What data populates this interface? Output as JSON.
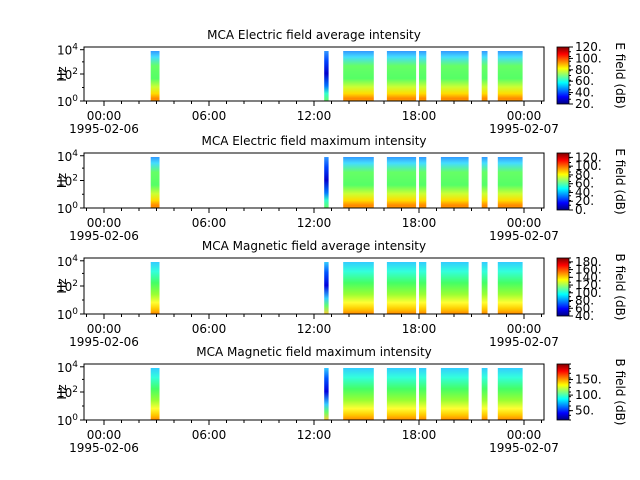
{
  "chart_data": [
    {
      "type": "heatmap",
      "title": "MCA  Electric field average intensity",
      "ylabel": "Hz",
      "yscale": "log",
      "yticks": [
        "10^0",
        "10^2",
        "10^4"
      ],
      "xticks": [
        "00:00",
        "06:00",
        "12:00",
        "18:00",
        "00:00"
      ],
      "xdates": [
        "1995-02-06",
        "1995-02-07"
      ],
      "colorbar": {
        "label": "E field (dB)",
        "ticks": [
          "20.",
          "40.",
          "60.",
          "80.",
          "100.",
          "120."
        ],
        "range": [
          20,
          120
        ]
      },
      "segments": [
        {
          "start": "02:40",
          "end": "03:10",
          "profile": "E"
        },
        {
          "start": "12:35",
          "end": "12:50",
          "profile": "E-dip"
        },
        {
          "start": "13:40",
          "end": "15:25",
          "profile": "E"
        },
        {
          "start": "16:10",
          "end": "17:50",
          "profile": "E"
        },
        {
          "start": "18:00",
          "end": "18:25",
          "profile": "E"
        },
        {
          "start": "19:15",
          "end": "20:50",
          "profile": "E"
        },
        {
          "start": "21:35",
          "end": "21:55",
          "profile": "E"
        },
        {
          "start": "22:30",
          "end": "23:55",
          "profile": "E"
        }
      ]
    },
    {
      "type": "heatmap",
      "title": "MCA  Electric field maximum intensity",
      "ylabel": "Hz",
      "yscale": "log",
      "yticks": [
        "10^0",
        "10^2",
        "10^4"
      ],
      "xticks": [
        "00:00",
        "06:00",
        "12:00",
        "18:00",
        "00:00"
      ],
      "xdates": [
        "1995-02-06",
        "1995-02-07"
      ],
      "colorbar": {
        "label": "E field (dB)",
        "ticks": [
          "0.",
          "20.",
          "40.",
          "60.",
          "80.",
          "100.",
          "120."
        ],
        "range": [
          0,
          130
        ]
      },
      "segments": [
        {
          "start": "02:40",
          "end": "03:10",
          "profile": "E"
        },
        {
          "start": "12:35",
          "end": "12:50",
          "profile": "E-dip"
        },
        {
          "start": "13:40",
          "end": "15:25",
          "profile": "E"
        },
        {
          "start": "16:10",
          "end": "17:50",
          "profile": "E"
        },
        {
          "start": "18:00",
          "end": "18:25",
          "profile": "E"
        },
        {
          "start": "19:15",
          "end": "20:50",
          "profile": "E"
        },
        {
          "start": "21:35",
          "end": "21:55",
          "profile": "E"
        },
        {
          "start": "22:30",
          "end": "23:55",
          "profile": "E"
        }
      ]
    },
    {
      "type": "heatmap",
      "title": "MCA  Magnetic field average intensity",
      "ylabel": "Hz",
      "yscale": "log",
      "yticks": [
        "10^0",
        "10^2",
        "10^4"
      ],
      "xticks": [
        "00:00",
        "06:00",
        "12:00",
        "18:00",
        "00:00"
      ],
      "xdates": [
        "1995-02-06",
        "1995-02-07"
      ],
      "colorbar": {
        "label": "B field (dB)",
        "ticks": [
          "40.",
          "60.",
          "80.",
          "100.",
          "120.",
          "140.",
          "160.",
          "180."
        ],
        "range": [
          40,
          190
        ]
      },
      "segments": [
        {
          "start": "02:40",
          "end": "03:10",
          "profile": "B"
        },
        {
          "start": "12:35",
          "end": "12:50",
          "profile": "B-dip"
        },
        {
          "start": "13:40",
          "end": "15:25",
          "profile": "B"
        },
        {
          "start": "16:10",
          "end": "17:50",
          "profile": "B"
        },
        {
          "start": "18:00",
          "end": "18:25",
          "profile": "B"
        },
        {
          "start": "19:15",
          "end": "20:50",
          "profile": "B"
        },
        {
          "start": "21:35",
          "end": "21:55",
          "profile": "B"
        },
        {
          "start": "22:30",
          "end": "23:55",
          "profile": "B"
        }
      ]
    },
    {
      "type": "heatmap",
      "title": "MCA  Magnetic field maximum intensity",
      "ylabel": "Hz",
      "yscale": "log",
      "yticks": [
        "10^0",
        "10^2",
        "10^4"
      ],
      "xticks": [
        "00:00",
        "06:00",
        "12:00",
        "18:00",
        "00:00"
      ],
      "xdates": [
        "1995-02-06",
        "1995-02-07"
      ],
      "colorbar": {
        "label": "B field (dB)",
        "ticks": [
          "50.",
          "100.",
          "150."
        ],
        "range": [
          20,
          200
        ]
      },
      "segments": [
        {
          "start": "02:40",
          "end": "03:10",
          "profile": "B"
        },
        {
          "start": "12:35",
          "end": "12:50",
          "profile": "B-dip"
        },
        {
          "start": "13:40",
          "end": "15:25",
          "profile": "B"
        },
        {
          "start": "16:10",
          "end": "17:50",
          "profile": "B"
        },
        {
          "start": "18:00",
          "end": "18:25",
          "profile": "B"
        },
        {
          "start": "19:15",
          "end": "20:50",
          "profile": "B"
        },
        {
          "start": "21:35",
          "end": "21:55",
          "profile": "B"
        },
        {
          "start": "22:30",
          "end": "23:55",
          "profile": "B"
        }
      ]
    }
  ]
}
